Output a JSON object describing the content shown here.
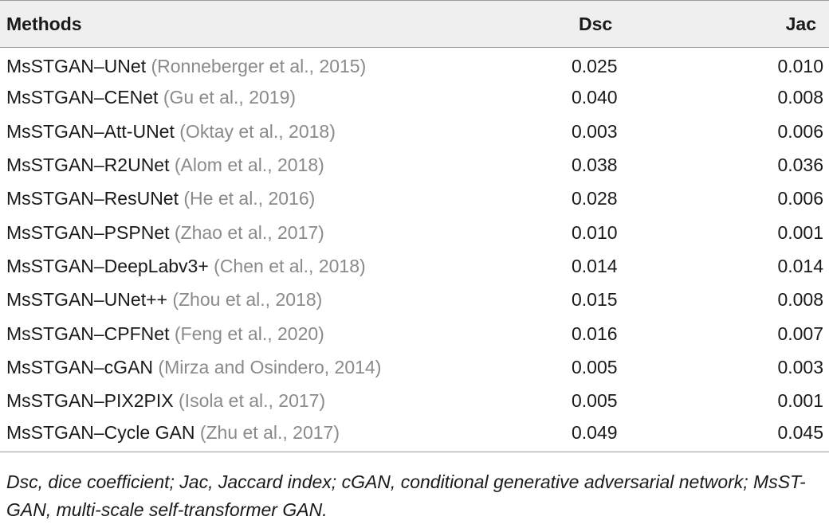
{
  "table": {
    "headers": {
      "methods": "Methods",
      "dsc": "Dsc",
      "jac": "Jac"
    },
    "rows": [
      {
        "method": "MsSTGAN–UNet",
        "ref": "(Ronneberger et al., 2015)",
        "dsc": "0.025",
        "jac": "0.010"
      },
      {
        "method": "MsSTGAN–CENet",
        "ref": "(Gu et al., 2019)",
        "dsc": "0.040",
        "jac": "0.008"
      },
      {
        "method": "MsSTGAN–Att-UNet",
        "ref": "(Oktay et al., 2018)",
        "dsc": "0.003",
        "jac": "0.006"
      },
      {
        "method": "MsSTGAN–R2UNet",
        "ref": "(Alom et al., 2018)",
        "dsc": "0.038",
        "jac": "0.036"
      },
      {
        "method": "MsSTGAN–ResUNet",
        "ref": "(He et al., 2016)",
        "dsc": "0.028",
        "jac": "0.006"
      },
      {
        "method": "MsSTGAN–PSPNet",
        "ref": "(Zhao et al., 2017)",
        "dsc": "0.010",
        "jac": "0.001"
      },
      {
        "method": "MsSTGAN–DeepLabv3+",
        "ref": "(Chen et al., 2018)",
        "dsc": "0.014",
        "jac": "0.014"
      },
      {
        "method": "MsSTGAN–UNet++",
        "ref": "(Zhou et al., 2018)",
        "dsc": "0.015",
        "jac": "0.008"
      },
      {
        "method": "MsSTGAN–CPFNet",
        "ref": "(Feng et al., 2020)",
        "dsc": "0.016",
        "jac": "0.007"
      },
      {
        "method": "MsSTGAN–cGAN",
        "ref": "(Mirza and Osindero, 2014)",
        "dsc": "0.005",
        "jac": "0.003"
      },
      {
        "method": "MsSTGAN–PIX2PIX",
        "ref": "(Isola et al., 2017)",
        "dsc": "0.005",
        "jac": "0.001"
      },
      {
        "method": "MsSTGAN–Cycle GAN",
        "ref": "(Zhu et al., 2017)",
        "dsc": "0.049",
        "jac": "0.045"
      }
    ]
  },
  "footnote": "Dsc, dice coefficient; Jac, Jaccard index; cGAN, conditional generative adversarial network; MsST-GAN, multi-scale self-transformer GAN.",
  "colors": {
    "header_bg": "#efefef",
    "reference_text": "#8a8a8a",
    "rule": "#9a9a9a"
  }
}
